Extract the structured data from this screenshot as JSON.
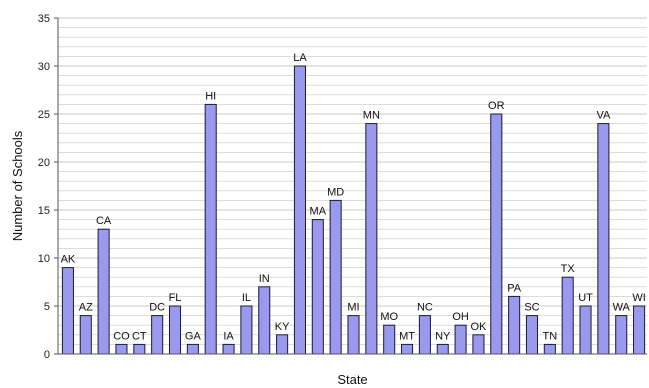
{
  "chart_data": {
    "type": "bar",
    "xlabel": "State",
    "ylabel": "Number of Schools",
    "ylim": [
      0,
      35
    ],
    "yticks": [
      0,
      5,
      10,
      15,
      20,
      25,
      30,
      35
    ],
    "grid": "horizontal",
    "legend": "none",
    "categories": [
      "AK",
      "AZ",
      "CA",
      "CO",
      "CT",
      "DC",
      "FL",
      "GA",
      "HI",
      "IA",
      "IL",
      "IN",
      "KY",
      "LA",
      "MA",
      "MD",
      "MI",
      "MN",
      "MO",
      "MT",
      "NC",
      "NY",
      "OH",
      "OK",
      "OR",
      "PA",
      "SC",
      "TN",
      "TX",
      "UT",
      "VA",
      "WA",
      "WI"
    ],
    "values": [
      9,
      4,
      13,
      1,
      1,
      4,
      5,
      1,
      26,
      1,
      5,
      7,
      2,
      30,
      14,
      16,
      4,
      24,
      3,
      1,
      4,
      1,
      3,
      2,
      25,
      6,
      4,
      1,
      8,
      5,
      24,
      4,
      5
    ],
    "colors": {
      "bar_fill": "#9999ee",
      "bar_stroke": "#1a1a3a",
      "grid": "#c8c8c8",
      "axis": "#555555"
    }
  }
}
